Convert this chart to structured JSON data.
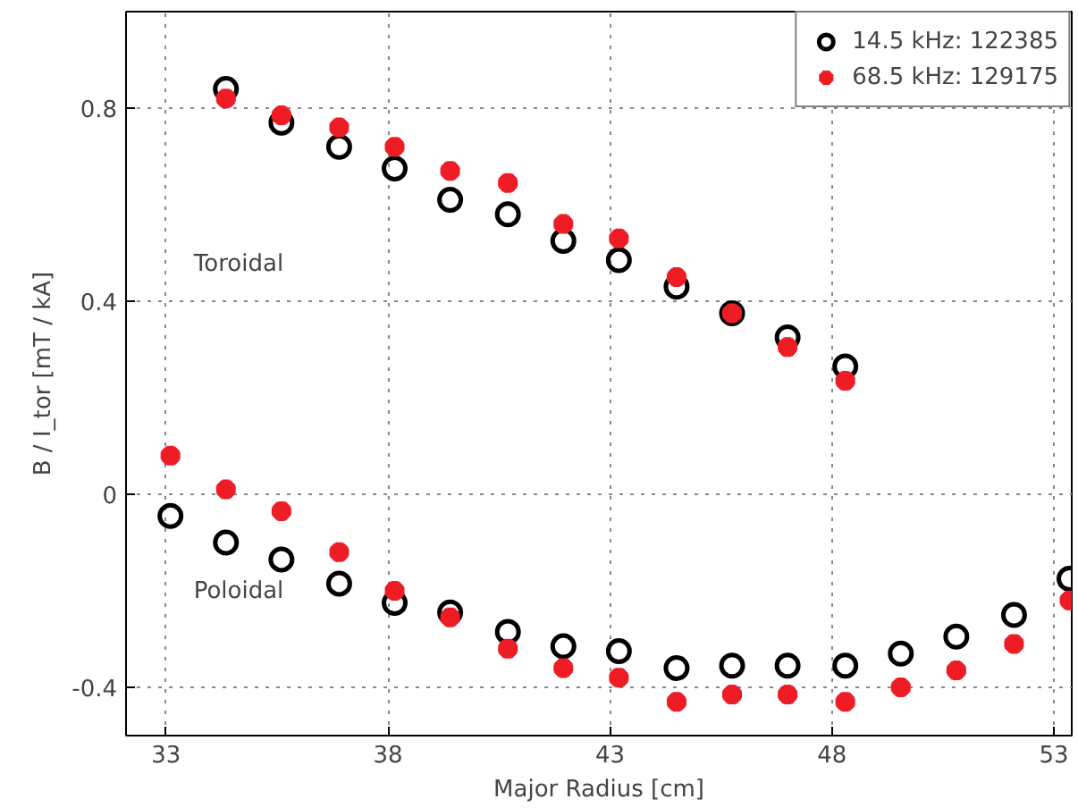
{
  "chart_data": {
    "type": "scatter",
    "xlabel": "Major Radius [cm]",
    "ylabel": "B / I_tor [mT / kA]",
    "xlim": [
      32.1,
      53.4
    ],
    "ylim": [
      -0.5,
      1.0
    ],
    "xticks": [
      33,
      38,
      43,
      48,
      53
    ],
    "yticks": [
      -0.4,
      0,
      0.4,
      0.8
    ],
    "grid": true,
    "line_style": "dotted",
    "legend": "top right",
    "annotations": [
      "Toroidal",
      "Poloidal"
    ],
    "series": [
      {
        "name": "14.5 kHz: 122385",
        "color": "#000000",
        "marker": "circle",
        "x": [
          34.35,
          35.6,
          36.9,
          38.15,
          39.4,
          40.7,
          41.95,
          43.2,
          44.5,
          45.75,
          47.0,
          48.3,
          33.1,
          34.35,
          35.6,
          36.9,
          38.15,
          39.4,
          40.7,
          41.95,
          43.2,
          44.5,
          45.75,
          47.0,
          48.3,
          49.55,
          50.8,
          52.1,
          53.35
        ],
        "values": [
          0.84,
          0.77,
          0.72,
          0.675,
          0.61,
          0.58,
          0.525,
          0.485,
          0.43,
          0.375,
          0.325,
          0.265,
          -0.045,
          -0.1,
          -0.135,
          -0.185,
          -0.225,
          -0.245,
          -0.285,
          -0.315,
          -0.325,
          -0.36,
          -0.355,
          -0.355,
          -0.355,
          -0.33,
          -0.295,
          -0.25,
          -0.175
        ]
      },
      {
        "name": "68.5 kHz: 129175",
        "color": "#ee1c25",
        "marker": "cross",
        "x": [
          34.35,
          35.6,
          36.9,
          38.15,
          39.4,
          40.7,
          41.95,
          43.2,
          44.5,
          45.75,
          47.0,
          48.3,
          33.1,
          34.35,
          35.6,
          36.9,
          38.15,
          39.4,
          40.7,
          41.95,
          43.2,
          44.5,
          45.75,
          47.0,
          48.3,
          49.55,
          50.8,
          52.1,
          53.35
        ],
        "values": [
          0.82,
          0.785,
          0.76,
          0.72,
          0.67,
          0.645,
          0.56,
          0.53,
          0.45,
          0.375,
          0.305,
          0.235,
          0.08,
          0.01,
          -0.035,
          -0.12,
          -0.2,
          -0.255,
          -0.32,
          -0.36,
          -0.38,
          -0.43,
          -0.415,
          -0.415,
          -0.43,
          -0.4,
          -0.365,
          -0.31,
          -0.22
        ]
      }
    ]
  }
}
